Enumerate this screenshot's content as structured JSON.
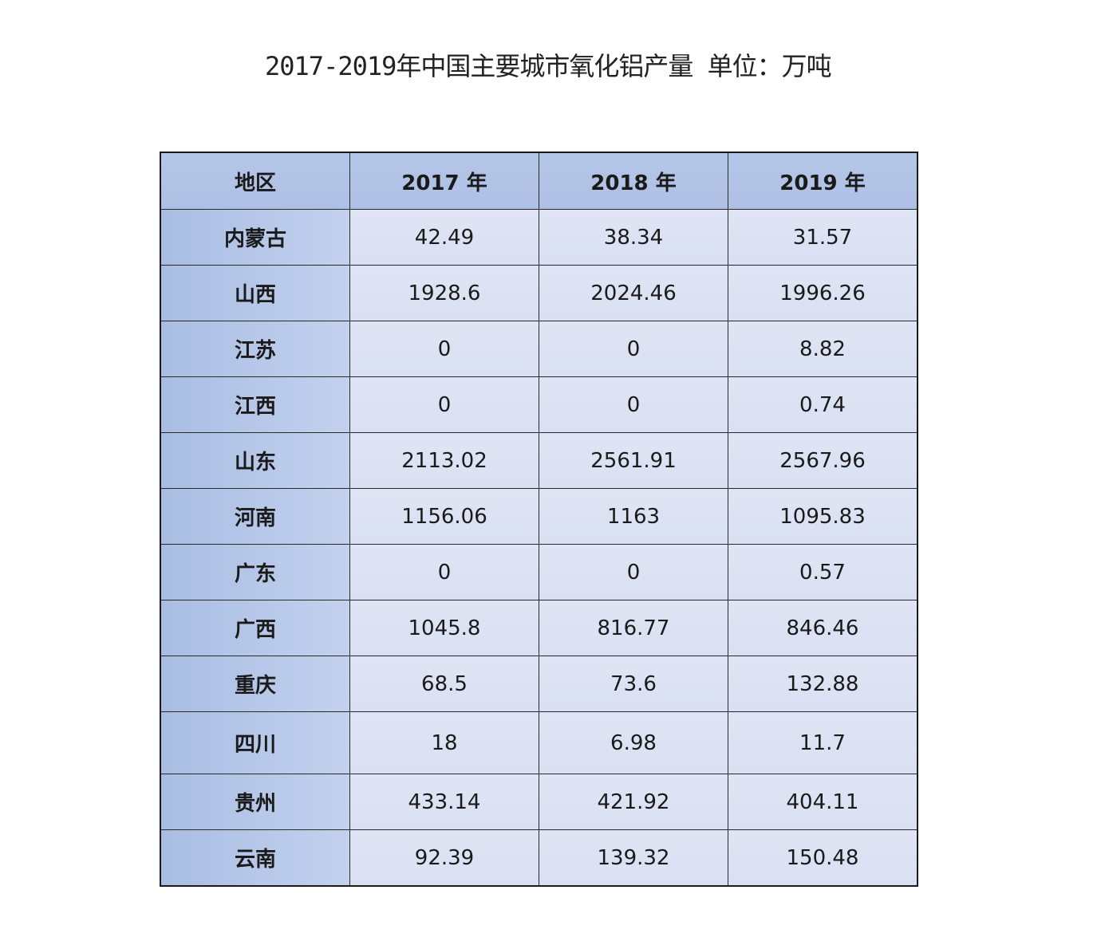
{
  "title": "2017-2019年中国主要城市氧化铝产量 单位：万吨",
  "chart_data": {
    "type": "table",
    "title": "2017-2019年中国主要城市氧化铝产量 单位：万吨",
    "columns": [
      "地区",
      "2017 年",
      "2018 年",
      "2019 年"
    ],
    "rows": [
      [
        "内蒙古",
        "42.49",
        "38.34",
        "31.57"
      ],
      [
        "山西",
        "1928.6",
        "2024.46",
        "1996.26"
      ],
      [
        "江苏",
        "0",
        "0",
        "8.82"
      ],
      [
        "江西",
        "0",
        "0",
        "0.74"
      ],
      [
        "山东",
        "2113.02",
        "2561.91",
        "2567.96"
      ],
      [
        "河南",
        "1156.06",
        "1163",
        "1095.83"
      ],
      [
        "广东",
        "0",
        "0",
        "0.57"
      ],
      [
        "广西",
        "1045.8",
        "816.77",
        "846.46"
      ],
      [
        "重庆",
        "68.5",
        "73.6",
        "132.88"
      ],
      [
        "四川",
        "18",
        "6.98",
        "11.7"
      ],
      [
        "贵州",
        "433.14",
        "421.92",
        "404.11"
      ],
      [
        "云南",
        "92.39",
        "139.32",
        "150.48"
      ]
    ],
    "colors": {
      "header": "#b4c6e7",
      "region_column": "#b4c6e7",
      "cell": "#dce3f3",
      "border": "#1a1a1a"
    }
  }
}
